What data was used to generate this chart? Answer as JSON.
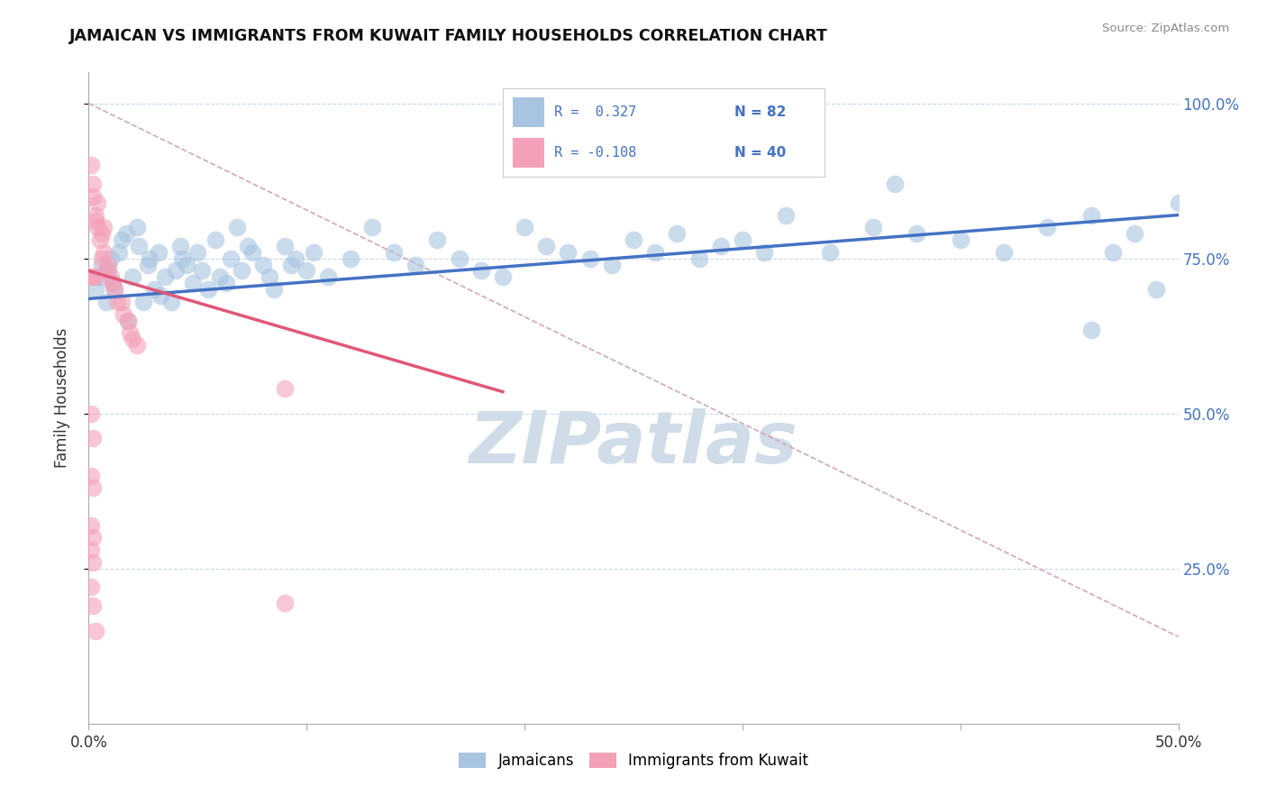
{
  "title": "JAMAICAN VS IMMIGRANTS FROM KUWAIT FAMILY HOUSEHOLDS CORRELATION CHART",
  "source": "Source: ZipAtlas.com",
  "ylabel": "Family Households",
  "ytick_labels": [
    "100.0%",
    "75.0%",
    "50.0%",
    "25.0%"
  ],
  "ytick_values": [
    1.0,
    0.75,
    0.5,
    0.25
  ],
  "xmin": 0.0,
  "xmax": 0.5,
  "ymin": 0.0,
  "ymax": 1.05,
  "legend_r1": "R =  0.327",
  "legend_n1": "N = 82",
  "legend_r2": "R = -0.108",
  "legend_n2": "N = 40",
  "blue_color": "#a8c4e0",
  "pink_color": "#f4a0b8",
  "blue_line_color": "#4472c4",
  "pink_line_color": "#e05878",
  "dashed_line_color": "#d0a8b8",
  "watermark_color": "#d0dce8",
  "legend_text_color": "#4472c4",
  "blue_line_x0": 0.0,
  "blue_line_x1": 0.5,
  "blue_line_y0": 0.685,
  "blue_line_y1": 0.82,
  "pink_line_x0": 0.0,
  "pink_line_x1": 0.19,
  "pink_line_y0": 0.73,
  "pink_line_y1": 0.535,
  "dashed_line_x0": 0.0,
  "dashed_line_x1": 0.5,
  "dashed_line_y0": 1.0,
  "dashed_line_y1": 0.14,
  "blue_scatter": [
    [
      0.003,
      0.7
    ],
    [
      0.005,
      0.72
    ],
    [
      0.006,
      0.74
    ],
    [
      0.008,
      0.68
    ],
    [
      0.009,
      0.73
    ],
    [
      0.01,
      0.75
    ],
    [
      0.011,
      0.71
    ],
    [
      0.012,
      0.7
    ],
    [
      0.014,
      0.76
    ],
    [
      0.015,
      0.78
    ],
    [
      0.017,
      0.79
    ],
    [
      0.018,
      0.65
    ],
    [
      0.02,
      0.72
    ],
    [
      0.022,
      0.8
    ],
    [
      0.023,
      0.77
    ],
    [
      0.025,
      0.68
    ],
    [
      0.027,
      0.74
    ],
    [
      0.028,
      0.75
    ],
    [
      0.03,
      0.7
    ],
    [
      0.032,
      0.76
    ],
    [
      0.033,
      0.69
    ],
    [
      0.035,
      0.72
    ],
    [
      0.038,
      0.68
    ],
    [
      0.04,
      0.73
    ],
    [
      0.042,
      0.77
    ],
    [
      0.043,
      0.75
    ],
    [
      0.045,
      0.74
    ],
    [
      0.048,
      0.71
    ],
    [
      0.05,
      0.76
    ],
    [
      0.052,
      0.73
    ],
    [
      0.055,
      0.7
    ],
    [
      0.058,
      0.78
    ],
    [
      0.06,
      0.72
    ],
    [
      0.063,
      0.71
    ],
    [
      0.065,
      0.75
    ],
    [
      0.068,
      0.8
    ],
    [
      0.07,
      0.73
    ],
    [
      0.073,
      0.77
    ],
    [
      0.075,
      0.76
    ],
    [
      0.08,
      0.74
    ],
    [
      0.083,
      0.72
    ],
    [
      0.085,
      0.7
    ],
    [
      0.09,
      0.77
    ],
    [
      0.093,
      0.74
    ],
    [
      0.095,
      0.75
    ],
    [
      0.1,
      0.73
    ],
    [
      0.103,
      0.76
    ],
    [
      0.11,
      0.72
    ],
    [
      0.12,
      0.75
    ],
    [
      0.13,
      0.8
    ],
    [
      0.14,
      0.76
    ],
    [
      0.15,
      0.74
    ],
    [
      0.16,
      0.78
    ],
    [
      0.17,
      0.75
    ],
    [
      0.18,
      0.73
    ],
    [
      0.19,
      0.72
    ],
    [
      0.2,
      0.8
    ],
    [
      0.21,
      0.77
    ],
    [
      0.22,
      0.76
    ],
    [
      0.23,
      0.75
    ],
    [
      0.24,
      0.74
    ],
    [
      0.25,
      0.78
    ],
    [
      0.26,
      0.76
    ],
    [
      0.27,
      0.79
    ],
    [
      0.28,
      0.75
    ],
    [
      0.29,
      0.77
    ],
    [
      0.3,
      0.78
    ],
    [
      0.31,
      0.76
    ],
    [
      0.32,
      0.82
    ],
    [
      0.34,
      0.76
    ],
    [
      0.36,
      0.8
    ],
    [
      0.37,
      0.87
    ],
    [
      0.38,
      0.79
    ],
    [
      0.4,
      0.78
    ],
    [
      0.42,
      0.76
    ],
    [
      0.44,
      0.8
    ],
    [
      0.46,
      0.82
    ],
    [
      0.47,
      0.76
    ],
    [
      0.48,
      0.79
    ],
    [
      0.49,
      0.7
    ],
    [
      0.5,
      0.84
    ],
    [
      0.46,
      0.635
    ]
  ],
  "pink_scatter": [
    [
      0.001,
      0.9
    ],
    [
      0.002,
      0.87
    ],
    [
      0.002,
      0.85
    ],
    [
      0.003,
      0.82
    ],
    [
      0.003,
      0.81
    ],
    [
      0.004,
      0.84
    ],
    [
      0.004,
      0.8
    ],
    [
      0.005,
      0.78
    ],
    [
      0.006,
      0.79
    ],
    [
      0.006,
      0.75
    ],
    [
      0.007,
      0.8
    ],
    [
      0.007,
      0.76
    ],
    [
      0.008,
      0.73
    ],
    [
      0.009,
      0.74
    ],
    [
      0.01,
      0.72
    ],
    [
      0.011,
      0.71
    ],
    [
      0.012,
      0.7
    ],
    [
      0.013,
      0.68
    ],
    [
      0.015,
      0.68
    ],
    [
      0.016,
      0.66
    ],
    [
      0.018,
      0.65
    ],
    [
      0.019,
      0.63
    ],
    [
      0.02,
      0.62
    ],
    [
      0.022,
      0.61
    ],
    [
      0.001,
      0.5
    ],
    [
      0.002,
      0.46
    ],
    [
      0.001,
      0.4
    ],
    [
      0.002,
      0.38
    ],
    [
      0.001,
      0.32
    ],
    [
      0.002,
      0.3
    ],
    [
      0.001,
      0.22
    ],
    [
      0.002,
      0.19
    ],
    [
      0.003,
      0.15
    ],
    [
      0.001,
      0.72
    ],
    [
      0.002,
      0.72
    ],
    [
      0.003,
      0.72
    ],
    [
      0.001,
      0.28
    ],
    [
      0.002,
      0.26
    ],
    [
      0.09,
      0.54
    ],
    [
      0.09,
      0.195
    ]
  ]
}
